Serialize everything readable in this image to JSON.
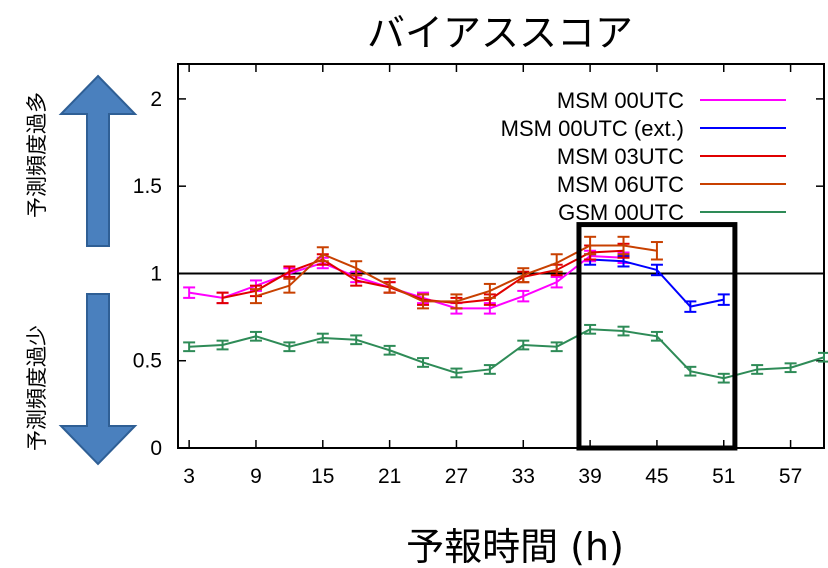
{
  "chart_data": {
    "type": "line",
    "title": "バイアススコア",
    "xlabel": "予報時間 (h)",
    "ylabel": "",
    "xlim": [
      2,
      60
    ],
    "ylim": [
      0,
      2.2
    ],
    "xticks": [
      "3",
      "9",
      "15",
      "21",
      "27",
      "33",
      "39",
      "45",
      "51",
      "57"
    ],
    "yticks": [
      "0",
      "0.5",
      "1",
      "1.5",
      "2"
    ],
    "reference_line": 1,
    "highlight_box": {
      "x_from": 38,
      "x_to": 52,
      "y_from": 0,
      "y_to": 1.28
    },
    "legend_position": "top-right",
    "annotations": {
      "over": "予測頻度過多",
      "under": "予測頻度過少"
    },
    "series": [
      {
        "name": "MSM 00UTC",
        "color": "#ff00ff",
        "x": [
          3,
          6,
          9,
          12,
          15,
          18,
          21,
          24,
          27,
          30,
          33,
          36,
          39,
          42
        ],
        "y": [
          0.89,
          0.86,
          0.93,
          1.0,
          1.06,
          0.98,
          0.92,
          0.86,
          0.8,
          0.8,
          0.87,
          0.95,
          1.1,
          1.09
        ],
        "err": [
          0.03,
          0.03,
          0.03,
          0.03,
          0.03,
          0.03,
          0.03,
          0.03,
          0.03,
          0.03,
          0.03,
          0.03,
          0.03,
          0.03
        ]
      },
      {
        "name": "MSM 00UTC (ext.)",
        "color": "#0000ff",
        "x": [
          39,
          42,
          45,
          48,
          51
        ],
        "y": [
          1.08,
          1.07,
          1.02,
          0.81,
          0.85
        ],
        "err": [
          0.03,
          0.03,
          0.03,
          0.03,
          0.03
        ]
      },
      {
        "name": "MSM 03UTC",
        "color": "#e00000",
        "x": [
          6,
          9,
          12,
          15,
          18,
          21,
          24,
          27,
          30,
          33,
          36,
          39,
          42
        ],
        "y": [
          0.86,
          0.9,
          1.01,
          1.08,
          0.96,
          0.92,
          0.85,
          0.83,
          0.85,
          0.98,
          1.02,
          1.12,
          1.13
        ],
        "err": [
          0.03,
          0.03,
          0.03,
          0.03,
          0.03,
          0.03,
          0.03,
          0.03,
          0.03,
          0.03,
          0.03,
          0.04,
          0.04
        ]
      },
      {
        "name": "MSM 06UTC",
        "color": "#c84000",
        "x": [
          9,
          12,
          15,
          18,
          21,
          24,
          27,
          30,
          33,
          36,
          39,
          42,
          45
        ],
        "y": [
          0.87,
          0.93,
          1.11,
          1.03,
          0.93,
          0.84,
          0.84,
          0.9,
          0.99,
          1.06,
          1.16,
          1.16,
          1.13
        ],
        "err": [
          0.04,
          0.04,
          0.04,
          0.04,
          0.04,
          0.04,
          0.04,
          0.04,
          0.04,
          0.05,
          0.05,
          0.05,
          0.05
        ]
      },
      {
        "name": "GSM 00UTC",
        "color": "#2e8b57",
        "x": [
          3,
          6,
          9,
          12,
          15,
          18,
          21,
          24,
          27,
          30,
          33,
          36,
          39,
          42,
          45,
          48,
          51,
          54,
          57,
          60
        ],
        "y": [
          0.58,
          0.59,
          0.64,
          0.58,
          0.63,
          0.62,
          0.56,
          0.49,
          0.43,
          0.45,
          0.59,
          0.58,
          0.68,
          0.67,
          0.64,
          0.44,
          0.4,
          0.45,
          0.46,
          0.52
        ],
        "err": [
          0.025,
          0.025,
          0.025,
          0.025,
          0.025,
          0.025,
          0.025,
          0.025,
          0.025,
          0.025,
          0.025,
          0.025,
          0.025,
          0.025,
          0.025,
          0.025,
          0.025,
          0.025,
          0.025,
          0.025
        ]
      }
    ]
  }
}
